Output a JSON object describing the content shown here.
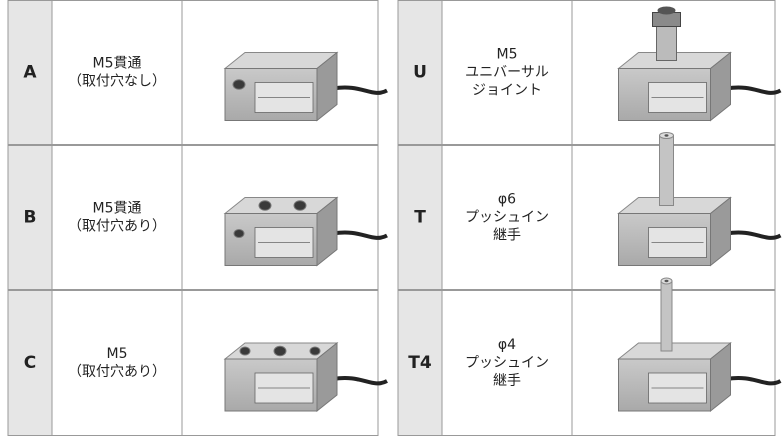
{
  "left": {
    "rows": [
      {
        "code": "A",
        "description": [
          "M5貫通",
          "（取付穴なし）"
        ]
      },
      {
        "code": "B",
        "description": [
          "M5貫通",
          "（取付穴あり）"
        ]
      },
      {
        "code": "C",
        "description": [
          "M5",
          "（取付穴あり）"
        ]
      }
    ]
  },
  "right": {
    "rows": [
      {
        "code": "U",
        "description": [
          "M5",
          "ユニバーサル",
          "ジョイント"
        ]
      },
      {
        "code": "T",
        "description": [
          "φ6",
          "プッシュイン",
          "継手"
        ]
      },
      {
        "code": "T4",
        "description": [
          "φ4",
          "プッシュイン",
          "継手"
        ]
      }
    ]
  }
}
